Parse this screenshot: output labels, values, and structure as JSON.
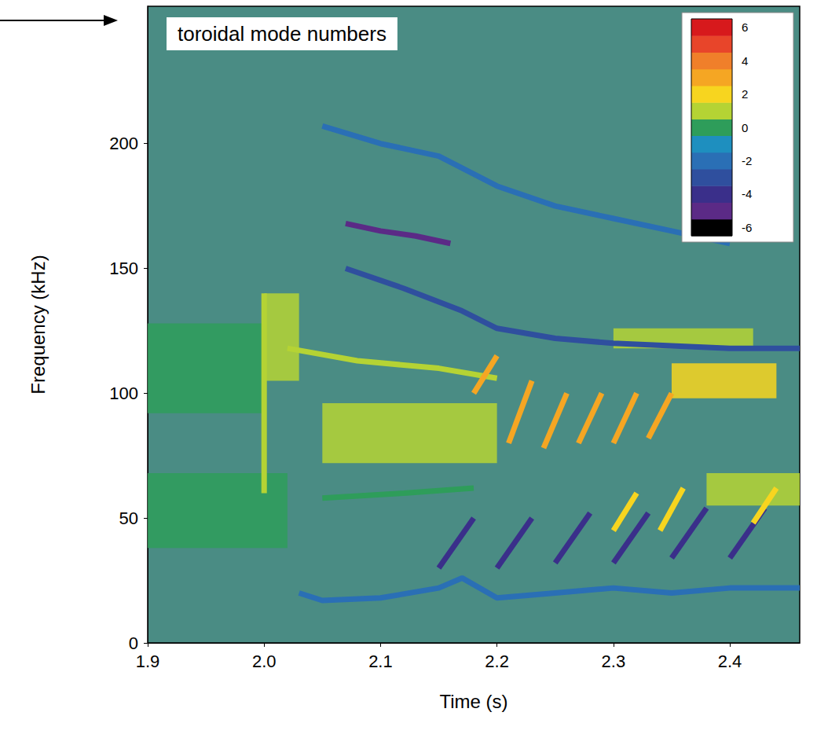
{
  "chart_data": {
    "type": "spectrogram",
    "title": "toroidal mode numbers",
    "x_label": "Time (s)",
    "y_label": "Frequency (kHz)",
    "xlim": [
      1.9,
      2.46
    ],
    "ylim": [
      0,
      255
    ],
    "xticks": [
      1.9,
      {
        "value": 2,
        "label": "2.0"
      },
      2.1,
      2.2,
      2.3,
      2.4
    ],
    "yticks": [
      0,
      50,
      100,
      150,
      200
    ],
    "colorbar": {
      "range": [
        -6,
        6
      ],
      "ticks": [
        -6,
        -4,
        -2,
        0,
        2,
        4,
        6
      ],
      "colors": [
        "#000000",
        "#5b2a86",
        "#3a2f8a",
        "#2f4f9e",
        "#2a6fb5",
        "#1e8fbf",
        "#2e9d5a",
        "#b5d334",
        "#f7d51f",
        "#f5a623",
        "#f07f2a",
        "#e8452a",
        "#d7191c"
      ]
    },
    "bands": [
      {
        "x": [
          1.9,
          2.02
        ],
        "y": [
          38,
          68
        ],
        "mode": 0
      },
      {
        "x": [
          1.9,
          2.0
        ],
        "y": [
          92,
          128
        ],
        "mode": 0
      },
      {
        "x": [
          2.0,
          2.03
        ],
        "y": [
          105,
          140
        ],
        "mode": 1
      },
      {
        "x": [
          2.05,
          2.2
        ],
        "y": [
          72,
          96
        ],
        "mode": 1
      },
      {
        "x": [
          2.35,
          2.44
        ],
        "y": [
          98,
          112
        ],
        "mode": 2
      },
      {
        "x": [
          2.38,
          2.46
        ],
        "y": [
          55,
          68
        ],
        "mode": 1
      },
      {
        "x": [
          2.3,
          2.42
        ],
        "y": [
          118,
          126
        ],
        "mode": 1
      }
    ],
    "traces": [
      {
        "mode": -2,
        "x": [
          2.03,
          2.05,
          2.1,
          2.15,
          2.17,
          2.2,
          2.25,
          2.3,
          2.35,
          2.4,
          2.46
        ],
        "y": [
          20,
          17,
          18,
          22,
          26,
          18,
          20,
          22,
          20,
          22,
          22
        ]
      },
      {
        "mode": -3,
        "x": [
          2.07,
          2.12,
          2.17,
          2.2,
          2.25,
          2.3,
          2.35,
          2.4,
          2.46
        ],
        "y": [
          150,
          142,
          133,
          126,
          122,
          120,
          119,
          118,
          118
        ]
      },
      {
        "mode": -2,
        "x": [
          2.05,
          2.1,
          2.15,
          2.2,
          2.25,
          2.3,
          2.35,
          2.4
        ],
        "y": [
          207,
          200,
          195,
          183,
          175,
          170,
          165,
          160
        ]
      },
      {
        "mode": -5,
        "x": [
          2.07,
          2.1,
          2.13,
          2.16
        ],
        "y": [
          168,
          165,
          163,
          160
        ]
      },
      {
        "mode": 1,
        "x": [
          2.0,
          2.0
        ],
        "y": [
          60,
          140
        ]
      },
      {
        "mode": 1,
        "x": [
          2.02,
          2.08,
          2.15,
          2.2
        ],
        "y": [
          118,
          113,
          110,
          106
        ]
      },
      {
        "mode": 0,
        "x": [
          2.05,
          2.12,
          2.18
        ],
        "y": [
          58,
          60,
          62
        ]
      },
      {
        "mode": -4,
        "x": [
          2.15,
          2.18
        ],
        "y": [
          30,
          50
        ]
      },
      {
        "mode": -4,
        "x": [
          2.2,
          2.23
        ],
        "y": [
          30,
          50
        ]
      },
      {
        "mode": -4,
        "x": [
          2.25,
          2.28
        ],
        "y": [
          32,
          52
        ]
      },
      {
        "mode": -4,
        "x": [
          2.3,
          2.33
        ],
        "y": [
          32,
          52
        ]
      },
      {
        "mode": -4,
        "x": [
          2.35,
          2.38
        ],
        "y": [
          34,
          54
        ]
      },
      {
        "mode": -4,
        "x": [
          2.4,
          2.43
        ],
        "y": [
          34,
          54
        ]
      },
      {
        "mode": 3,
        "x": [
          2.18,
          2.2
        ],
        "y": [
          100,
          115
        ]
      },
      {
        "mode": 3,
        "x": [
          2.21,
          2.23
        ],
        "y": [
          80,
          105
        ]
      },
      {
        "mode": 3,
        "x": [
          2.24,
          2.26
        ],
        "y": [
          78,
          100
        ]
      },
      {
        "mode": 3,
        "x": [
          2.27,
          2.29
        ],
        "y": [
          80,
          100
        ]
      },
      {
        "mode": 3,
        "x": [
          2.3,
          2.32
        ],
        "y": [
          80,
          100
        ]
      },
      {
        "mode": 3,
        "x": [
          2.33,
          2.35
        ],
        "y": [
          82,
          100
        ]
      },
      {
        "mode": 2,
        "x": [
          2.3,
          2.32
        ],
        "y": [
          45,
          60
        ]
      },
      {
        "mode": 2,
        "x": [
          2.34,
          2.36
        ],
        "y": [
          45,
          62
        ]
      },
      {
        "mode": 2,
        "x": [
          2.42,
          2.44
        ],
        "y": [
          48,
          62
        ]
      }
    ]
  }
}
